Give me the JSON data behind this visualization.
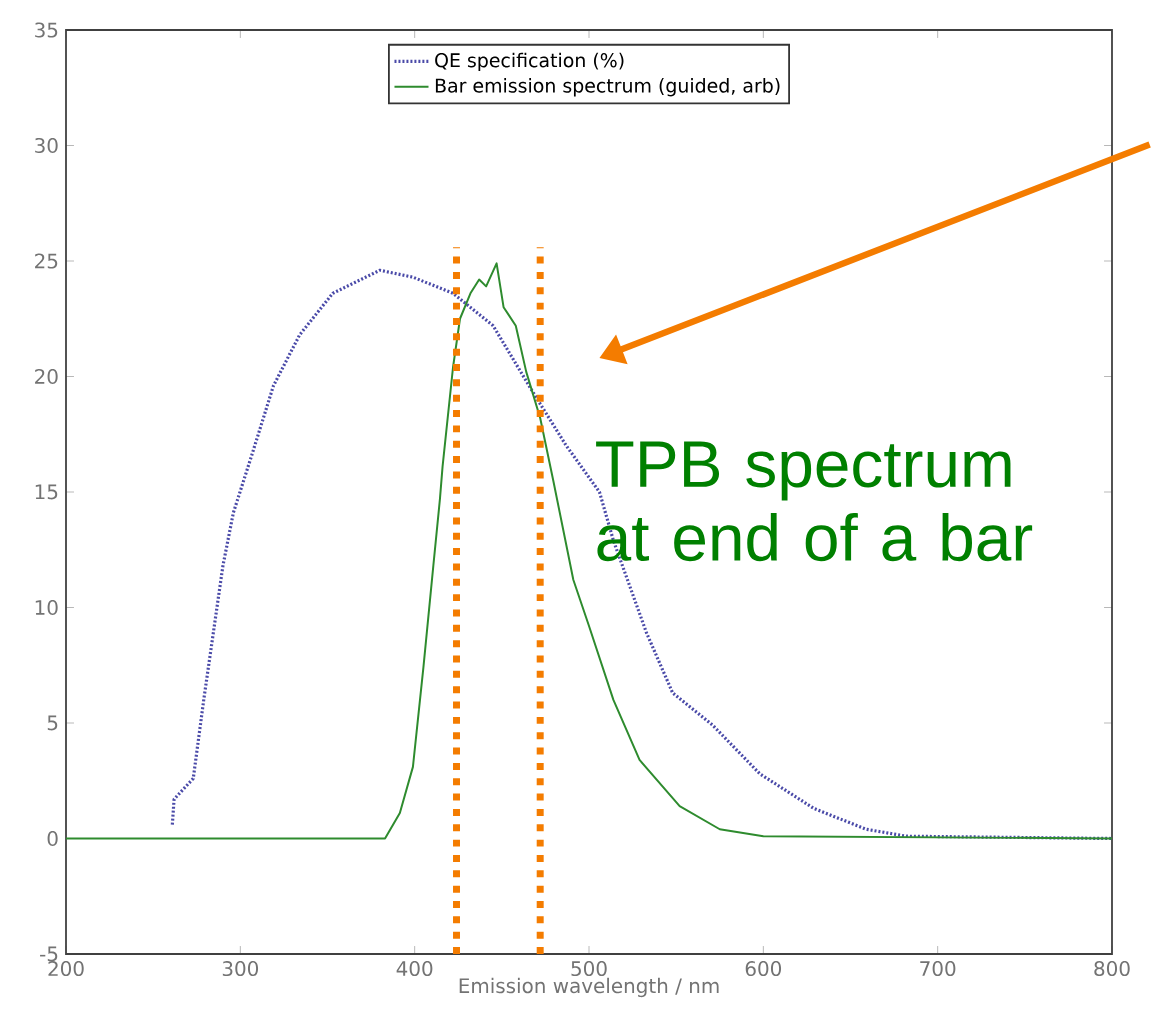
{
  "chart_data": {
    "type": "line",
    "xlabel": "Emission wavelength / nm",
    "xlim": [
      200,
      800
    ],
    "ylim": [
      -5,
      35
    ],
    "xticks": [
      200,
      300,
      400,
      500,
      600,
      700,
      800
    ],
    "yticks": [
      -5,
      0,
      5,
      10,
      15,
      20,
      25,
      30,
      35
    ],
    "grid": false,
    "legend": "top",
    "marker": "none",
    "series": [
      {
        "name": "QE specification (%)",
        "color": "#4a4aa8",
        "line_style": "dotted",
        "x": [
          261,
          262,
          273,
          279,
          284.5,
          290,
          296,
          307,
          319,
          334,
          353,
          380,
          399,
          422,
          445,
          468,
          487,
          506,
          514,
          533,
          548,
          571,
          598,
          629,
          659,
          682,
          800
        ],
        "values": [
          0.6,
          1.7,
          2.6,
          6.0,
          8.9,
          11.8,
          14.1,
          16.7,
          19.6,
          21.8,
          23.6,
          24.6,
          24.3,
          23.6,
          22.2,
          19.3,
          17.0,
          15.0,
          12.9,
          8.9,
          6.3,
          4.9,
          2.8,
          1.3,
          0.4,
          0.1,
          0
        ]
      },
      {
        "name": "Bar emission spectrum (guided, arb)",
        "color": "#2e8b2e",
        "line_style": "solid",
        "x": [
          200,
          383,
          391.5,
          399,
          405,
          410.7,
          414.5,
          416,
          422,
          426,
          432,
          437,
          441,
          447,
          451,
          458,
          464,
          472,
          479.5,
          491,
          500,
          514,
          529,
          552,
          575,
          600,
          800
        ],
        "values": [
          0,
          0,
          1.1,
          3.1,
          7.4,
          11.8,
          14.7,
          16.1,
          20.4,
          22.5,
          23.6,
          24.2,
          23.9,
          24.9,
          23.0,
          22.2,
          20.2,
          18.2,
          15.5,
          11.2,
          9.2,
          6.0,
          3.4,
          1.4,
          0.4,
          0.1,
          0
        ]
      }
    ],
    "ref_lines": [
      {
        "axis": "x",
        "value": 424,
        "color": "#f47c00",
        "line_style": "dotted"
      },
      {
        "axis": "x",
        "value": 472,
        "color": "#f47c00",
        "line_style": "dotted"
      }
    ],
    "annotations": [
      "TPB spectrum at end of a bar"
    ]
  }
}
